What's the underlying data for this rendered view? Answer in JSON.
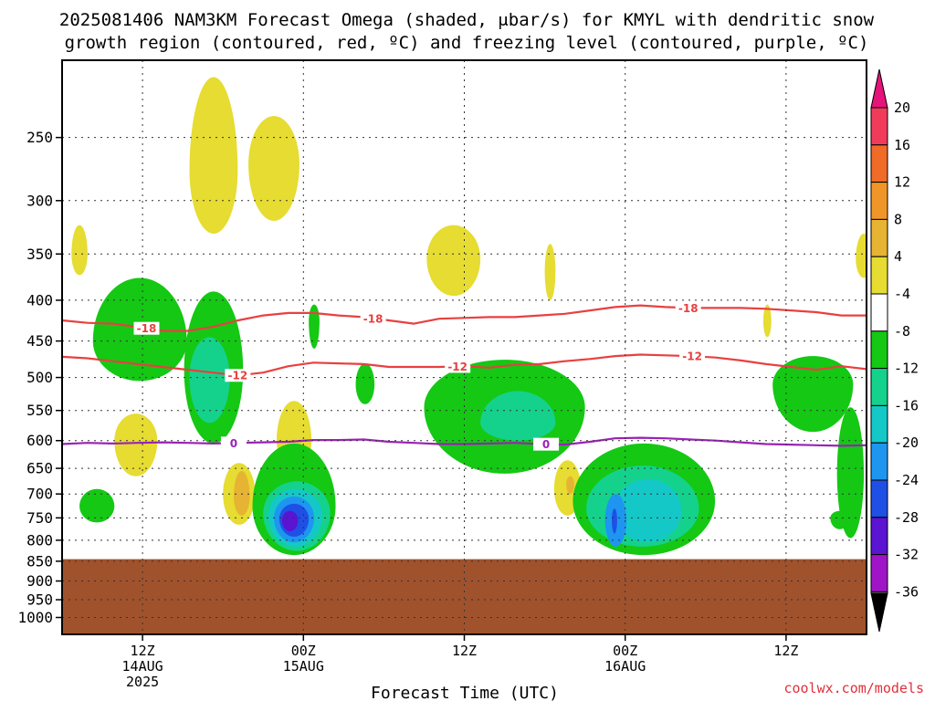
{
  "title": {
    "line1": "2025081406 NAM3KM Forecast Omega (shaded, μbar/s) for KMYL with dendritic snow",
    "line2": "growth region (contoured, red, ºC) and freezing level (contoured, purple, ºC)"
  },
  "credit": "coolwx.com/models",
  "chart_data": {
    "type": "heatmap",
    "title": "2025081406 NAM3KM Forecast Omega (shaded, μbar/s) for KMYL with dendritic snow growth region (contoured, red, ºC) and freezing level (contoured, purple, ºC)",
    "xlabel": "Forecast Time (UTC)",
    "ylabel": "",
    "x_range_hours_since_init": [
      0,
      60
    ],
    "x_ticks": [
      {
        "hour": 6,
        "label": [
          "12Z",
          "14AUG",
          "2025"
        ]
      },
      {
        "hour": 18,
        "label": [
          "00Z",
          "15AUG"
        ]
      },
      {
        "hour": 30,
        "label": [
          "12Z"
        ]
      },
      {
        "hour": 42,
        "label": [
          "00Z",
          "16AUG"
        ]
      },
      {
        "hour": 54,
        "label": [
          "12Z"
        ]
      }
    ],
    "y_axis": {
      "units": "hPa",
      "scale": "log",
      "range": [
        200,
        1050
      ],
      "ticks": [
        250,
        300,
        350,
        400,
        450,
        500,
        550,
        600,
        650,
        700,
        750,
        800,
        850,
        900,
        950,
        1000
      ]
    },
    "grid": true,
    "ground_level_hpa": 845,
    "ground_color": "#a0522d",
    "colorbar": {
      "labels": [
        "20",
        "16",
        "12",
        "8",
        "4",
        "-4",
        "-8",
        "-12",
        "-16",
        "-20",
        "-24",
        "-28",
        "-32",
        "-36"
      ],
      "colors": [
        "#f03c5a",
        "#f06a28",
        "#f09628",
        "#e6b432",
        "#e6dc32",
        "#ffffff",
        "#14c814",
        "#14d28c",
        "#14c8c8",
        "#1e96f0",
        "#1e50e6",
        "#5a14d2",
        "#a014c8",
        "#a0a0a0"
      ],
      "top_arrow_color": "#e6147a",
      "bottom_arrow_color": "#000000"
    },
    "omega_regions": [
      {
        "level": "4",
        "color": "#e6dc32",
        "hour": 11.3,
        "center_hpa": 275,
        "half_width_hr": 1.8,
        "top_hpa": 210,
        "bottom_hpa": 330
      },
      {
        "level": "4",
        "color": "#e6dc32",
        "hour": 15.8,
        "center_hpa": 270,
        "half_width_hr": 1.9,
        "top_hpa": 235,
        "bottom_hpa": 318
      },
      {
        "level": "4",
        "color": "#e6dc32",
        "hour": 1.3,
        "center_hpa": 350,
        "half_width_hr": 0.6,
        "top_hpa": 322,
        "bottom_hpa": 372
      },
      {
        "level": "4",
        "color": "#e6dc32",
        "hour": 29.2,
        "center_hpa": 355,
        "half_width_hr": 2.0,
        "top_hpa": 322,
        "bottom_hpa": 395
      },
      {
        "level": "4",
        "color": "#e6dc32",
        "hour": 36.4,
        "center_hpa": 368,
        "half_width_hr": 0.4,
        "top_hpa": 340,
        "bottom_hpa": 400
      },
      {
        "level": "4",
        "color": "#e6dc32",
        "hour": 59.8,
        "center_hpa": 355,
        "half_width_hr": 0.6,
        "top_hpa": 330,
        "bottom_hpa": 375
      },
      {
        "level": "4",
        "color": "#e6dc32",
        "hour": 52.6,
        "center_hpa": 425,
        "half_width_hr": 0.3,
        "top_hpa": 405,
        "bottom_hpa": 445
      },
      {
        "level": "4",
        "color": "#e6dc32",
        "hour": 5.5,
        "center_hpa": 600,
        "half_width_hr": 1.6,
        "top_hpa": 555,
        "bottom_hpa": 665
      },
      {
        "level": "4",
        "color": "#e6dc32",
        "hour": 17.3,
        "center_hpa": 600,
        "half_width_hr": 1.3,
        "top_hpa": 535,
        "bottom_hpa": 650
      },
      {
        "level": "4",
        "color": "#e6dc32",
        "hour": 13.2,
        "center_hpa": 700,
        "half_width_hr": 1.2,
        "top_hpa": 640,
        "bottom_hpa": 765
      },
      {
        "level": "8",
        "color": "#e6b432",
        "hour": 13.4,
        "center_hpa": 705,
        "half_width_hr": 0.6,
        "top_hpa": 655,
        "bottom_hpa": 745
      },
      {
        "level": "4",
        "color": "#e6dc32",
        "hour": 37.7,
        "center_hpa": 690,
        "half_width_hr": 1.0,
        "top_hpa": 635,
        "bottom_hpa": 745
      },
      {
        "level": "8",
        "color": "#e6b432",
        "hour": 37.9,
        "center_hpa": 680,
        "half_width_hr": 0.3,
        "top_hpa": 665,
        "bottom_hpa": 700
      },
      {
        "level": "-4",
        "color": "#14c814",
        "hour": 5.8,
        "center_hpa": 450,
        "half_width_hr": 3.5,
        "top_hpa": 375,
        "bottom_hpa": 505
      },
      {
        "level": "-4",
        "color": "#14c814",
        "hour": 11.3,
        "center_hpa": 490,
        "half_width_hr": 2.2,
        "top_hpa": 390,
        "bottom_hpa": 605
      },
      {
        "level": "-8",
        "color": "#14d28c",
        "hour": 11.0,
        "center_hpa": 500,
        "half_width_hr": 1.5,
        "top_hpa": 445,
        "bottom_hpa": 570
      },
      {
        "level": "-4",
        "color": "#14c814",
        "hour": 18.8,
        "center_hpa": 425,
        "half_width_hr": 0.4,
        "top_hpa": 405,
        "bottom_hpa": 460
      },
      {
        "level": "-4",
        "color": "#14c814",
        "hour": 22.6,
        "center_hpa": 510,
        "half_width_hr": 0.7,
        "top_hpa": 480,
        "bottom_hpa": 540
      },
      {
        "level": "-4",
        "color": "#14c814",
        "hour": 33.0,
        "center_hpa": 545,
        "half_width_hr": 6.0,
        "top_hpa": 475,
        "bottom_hpa": 660
      },
      {
        "level": "-8",
        "color": "#14d28c",
        "hour": 34.0,
        "center_hpa": 570,
        "half_width_hr": 2.8,
        "top_hpa": 520,
        "bottom_hpa": 600
      },
      {
        "level": "-4",
        "color": "#14c814",
        "hour": 43.4,
        "center_hpa": 715,
        "half_width_hr": 5.3,
        "top_hpa": 605,
        "bottom_hpa": 835
      },
      {
        "level": "-8",
        "color": "#14d28c",
        "hour": 43.3,
        "center_hpa": 730,
        "half_width_hr": 4.2,
        "top_hpa": 645,
        "bottom_hpa": 815
      },
      {
        "level": "-12",
        "color": "#14c8c8",
        "hour": 43.7,
        "center_hpa": 735,
        "half_width_hr": 2.5,
        "top_hpa": 670,
        "bottom_hpa": 805
      },
      {
        "level": "-16",
        "color": "#1e96f0",
        "hour": 41.3,
        "center_hpa": 755,
        "half_width_hr": 0.8,
        "top_hpa": 700,
        "bottom_hpa": 815
      },
      {
        "level": "-20",
        "color": "#1e50e6",
        "hour": 41.2,
        "center_hpa": 755,
        "half_width_hr": 0.2,
        "top_hpa": 730,
        "bottom_hpa": 785
      },
      {
        "level": "-4",
        "color": "#14c814",
        "hour": 56.0,
        "center_hpa": 510,
        "half_width_hr": 3.0,
        "top_hpa": 470,
        "bottom_hpa": 585
      },
      {
        "level": "-4",
        "color": "#14c814",
        "hour": 58.8,
        "center_hpa": 660,
        "half_width_hr": 1.0,
        "top_hpa": 545,
        "bottom_hpa": 795
      },
      {
        "level": "-4",
        "color": "#14c814",
        "hour": 58.0,
        "center_hpa": 750,
        "half_width_hr": 0.7,
        "top_hpa": 735,
        "bottom_hpa": 775
      },
      {
        "level": "-4",
        "color": "#14c814",
        "hour": 2.6,
        "center_hpa": 725,
        "half_width_hr": 1.3,
        "top_hpa": 690,
        "bottom_hpa": 760
      },
      {
        "level": "-4",
        "color": "#14c814",
        "hour": 17.3,
        "center_hpa": 725,
        "half_width_hr": 3.1,
        "top_hpa": 605,
        "bottom_hpa": 835
      },
      {
        "level": "-8",
        "color": "#14d28c",
        "hour": 17.5,
        "center_hpa": 740,
        "half_width_hr": 2.5,
        "top_hpa": 675,
        "bottom_hpa": 825
      },
      {
        "level": "-12",
        "color": "#14c8c8",
        "hour": 17.4,
        "center_hpa": 745,
        "half_width_hr": 2.0,
        "top_hpa": 690,
        "bottom_hpa": 815
      },
      {
        "level": "-16",
        "color": "#1e96f0",
        "hour": 17.3,
        "center_hpa": 750,
        "half_width_hr": 1.5,
        "top_hpa": 705,
        "bottom_hpa": 805
      },
      {
        "level": "-20",
        "color": "#1e50e6",
        "hour": 17.3,
        "center_hpa": 752,
        "half_width_hr": 1.1,
        "top_hpa": 720,
        "bottom_hpa": 792
      },
      {
        "level": "-24",
        "color": "#5a14d2",
        "hour": 17.0,
        "center_hpa": 755,
        "half_width_hr": 0.6,
        "top_hpa": 735,
        "bottom_hpa": 780
      }
    ],
    "contours": [
      {
        "name": "-18",
        "color": "#e84040",
        "hpa": [
          424,
          427,
          428,
          432,
          437,
          437,
          432,
          424,
          418,
          415,
          415,
          418,
          420,
          424,
          428,
          422,
          421,
          420,
          420,
          418,
          416,
          412,
          408,
          406,
          408,
          409,
          409,
          409,
          410,
          412,
          414,
          418,
          418
        ],
        "label_hours": [
          6.3,
          23.2,
          46.7
        ]
      },
      {
        "name": "-12",
        "color": "#e84040",
        "hpa": [
          471,
          473,
          477,
          481,
          485,
          489,
          493,
          497,
          493,
          484,
          479,
          480,
          481,
          485,
          485,
          485,
          484,
          486,
          482,
          481,
          477,
          474,
          470,
          468,
          469,
          470,
          472,
          476,
          481,
          485,
          489,
          484,
          488
        ],
        "label_hours": [
          13.1,
          29.5,
          47.0
        ]
      },
      {
        "name": "0",
        "color": "#9a22b4",
        "hpa": [
          606,
          604,
          605,
          604,
          603,
          604,
          605,
          604,
          603,
          602,
          599,
          599,
          598,
          602,
          604,
          606,
          606,
          605,
          604,
          606,
          607,
          602,
          596,
          595,
          596,
          598,
          600,
          603,
          606,
          607,
          608,
          609,
          608
        ],
        "label_hours": [
          12.8,
          36.1
        ]
      }
    ]
  }
}
